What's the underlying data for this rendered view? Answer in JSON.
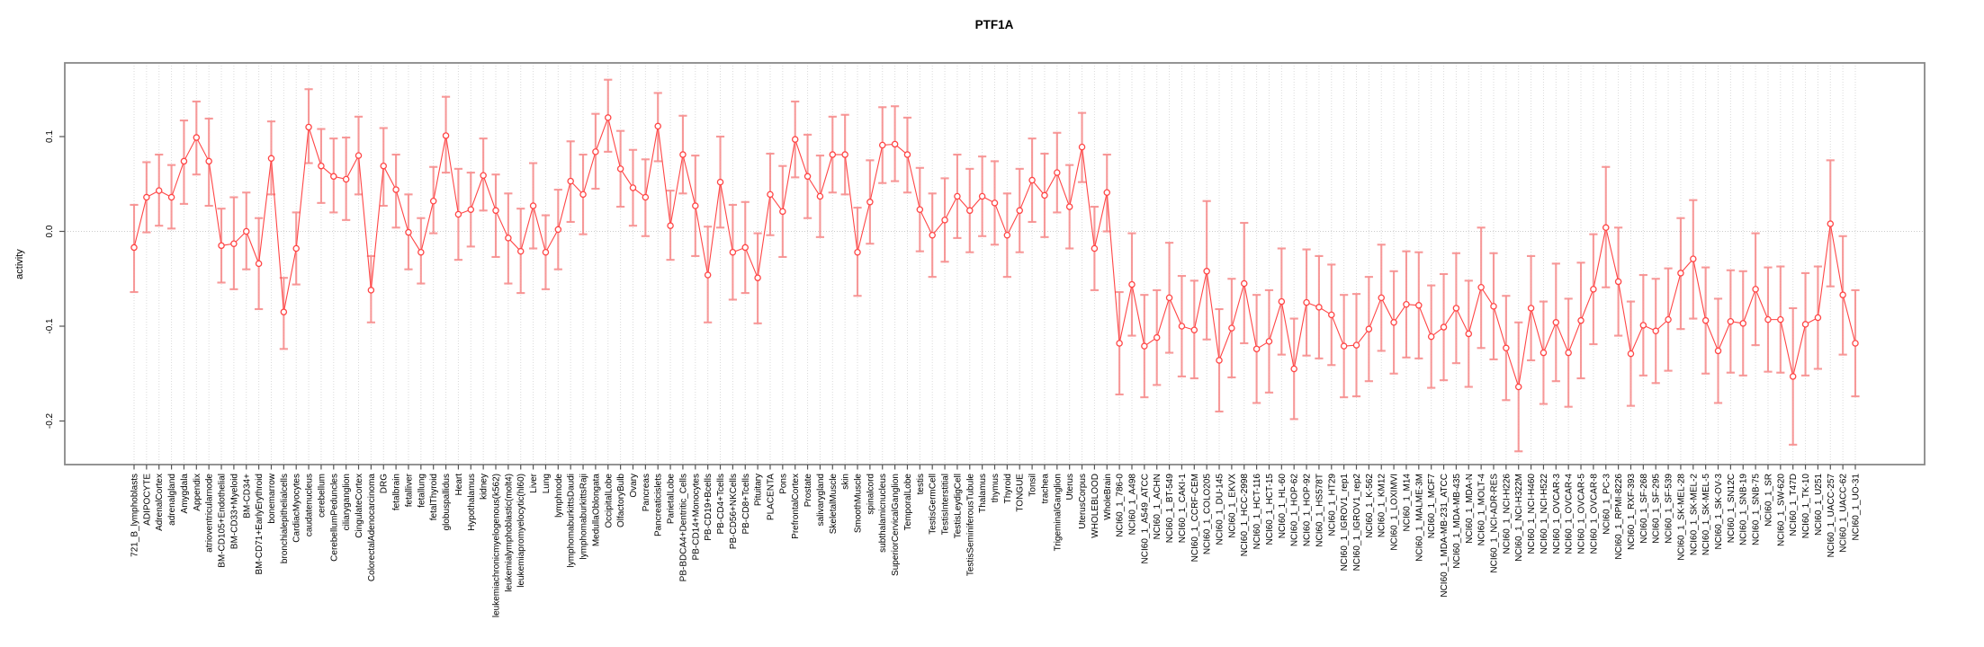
{
  "chart_data": {
    "type": "line",
    "title": "PTF1A",
    "xlabel": "",
    "ylabel": "activity",
    "ylim": [
      -0.245,
      0.177
    ],
    "yticks": [
      0.1,
      0.0,
      -0.1,
      -0.2
    ],
    "ytick_labels": [
      "0.1",
      "0.0",
      "-0.1",
      "-0.2"
    ],
    "grid": "vertical-dotted-per-category-plus-dotted-zero-line",
    "legend": "none",
    "marker": "open-circle",
    "error_bars": "both-ends-capped",
    "colors": {
      "series": "#ff4646",
      "marker_fill": "#ffffff",
      "error_bar": "#f78f8f",
      "grid": "#dadada",
      "zero_line": "#cccccc",
      "box": "#888888",
      "tick": "#555555",
      "text": "#000000"
    },
    "categories": [
      "721_B_lymphoblasts",
      "ADIPOCYTE",
      "AdrenalCortex",
      "adrenalgland",
      "Amygdala",
      "Appendix",
      "atrioventricularnode",
      "BM-CD105+Endothelial",
      "BM-CD33+Myeloid",
      "BM-CD34+",
      "BM-CD71+EarlyErythroid",
      "bonemarrow",
      "bronchialepithelialcells",
      "CardiacMyocytes",
      "caudatenucleus",
      "cerebellum",
      "CerebellumPeduncles",
      "ciliaryganglion",
      "CingulateCortex",
      "ColorectalAdenocarcinoma",
      "DRG",
      "fetalbrain",
      "fetalliver",
      "fetallung",
      "fetalThyroid",
      "globuspallidus",
      "Heart",
      "Hypothalamus",
      "kidney",
      "leukemiachronicmyelogenous(k562)",
      "leukemialymphoblastic(molt4)",
      "leukemiapromyelocytic(hl60)",
      "Liver",
      "Lung",
      "lymphnode",
      "lymphomaburkittsDaudi",
      "lymphomaburkittsRaji",
      "MedullaOblongata",
      "OccipitalLobe",
      "OlfactoryBulb",
      "Ovary",
      "Pancreas",
      "Pancreaticislets",
      "ParietalLobe",
      "PB-BDCA4+Dentritic_Cells",
      "PB-CD14+Monocytes",
      "PB-CD19+Bcells",
      "PB-CD4+Tcells",
      "PB-CD56+NKCells",
      "PB-CD8+Tcells",
      "Pituitary",
      "PLACENTA",
      "Pons",
      "PrefrontalCortex",
      "Prostate",
      "salivarygland",
      "SkeletalMuscle",
      "skin",
      "SmoothMuscle",
      "spinalcord",
      "subthalamicnucleus",
      "SuperiorCervicalGanglion",
      "TemporalLobe",
      "testis",
      "TestisGermCell",
      "TestisInterstitial",
      "TestisLeydigCell",
      "TestisSeminiferousTubule",
      "Thalamus",
      "thymus",
      "Thyroid",
      "TONGUE",
      "Tonsil",
      "trachea",
      "TrigeminalGanglion",
      "Uterus",
      "UterusCorpus",
      "WHOLEBLOOD",
      "WholeBrain",
      "NCI60_1_786-0",
      "NCI60_1_A498",
      "NCI60_1_A549_ATCC",
      "NCI60_1_ACHN",
      "NCI60_1_BT-549",
      "NCI60_1_CAKI-1",
      "NCI60_1_CCRF-CEM",
      "NCI60_1_COLO205",
      "NCI60_1_DU-145",
      "NCI60_1_EKVX",
      "NCI60_1_HCC-2998",
      "NCI60_1_HCT-116",
      "NCI60_1_HCT-15",
      "NCI60_1_HL-60",
      "NCI60_1_HOP-62",
      "NCI60_1_HOP-92",
      "NCI60_1_HS578T",
      "NCI60_1_HT29",
      "NCI60_1_IGROV1_rep1",
      "NCI60_1_IGROV1_rep2",
      "NCI60_1_K-562",
      "NCI60_1_KM12",
      "NCI60_1_LOXIMVI",
      "NCI60_1_M14",
      "NCI60_1_MALME-3M",
      "NCI60_1_MCF7",
      "NCI60_1_MDA-MB-231_ATCC",
      "NCI60_1_MDA-MB-435",
      "NCI60_1_MDA-N",
      "NCI60_1_MOLT-4",
      "NCI60_1_NCI-ADR-RES",
      "NCI60_1_NCI-H226",
      "NCI60_1_NCI-H322M",
      "NCI60_1_NCI-H460",
      "NCI60_1_NCI-H522",
      "NCI60_1_OVCAR-3",
      "NCI60_1_OVCAR-4",
      "NCI60_1_OVCAR-5",
      "NCI60_1_OVCAR-8",
      "NCI60_1_PC-3",
      "NCI60_1_RPMI-8226",
      "NCI60_1_RXF-393",
      "NCI60_1_SF-268",
      "NCI60_1_SF-295",
      "NCI60_1_SF-539",
      "NCI60_1_SK-MEL-28",
      "NCI60_1_SK-MEL-2",
      "NCI60_1_SK-MEL-5",
      "NCI60_1_SK-OV-3",
      "NCI60_1_SN12C",
      "NCI60_1_SNB-19",
      "NCI60_1_SNB-75",
      "NCI60_1_SR",
      "NCI60_1_SW-620",
      "NCI60_1_T47D",
      "NCI60_1_TK-10",
      "NCI60_1_U251",
      "NCI60_1_UACC-257",
      "NCI60_1_UACC-62",
      "NCI60_1_UO-31"
    ],
    "series": [
      {
        "name": "activity",
        "values": [
          -0.017,
          0.036,
          0.043,
          0.036,
          0.074,
          0.099,
          0.074,
          -0.015,
          -0.013,
          0.0,
          -0.034,
          0.077,
          -0.085,
          -0.018,
          0.11,
          0.069,
          0.058,
          0.055,
          0.08,
          -0.062,
          0.069,
          0.044,
          -0.001,
          -0.022,
          0.032,
          0.101,
          0.018,
          0.023,
          0.059,
          0.022,
          -0.007,
          -0.021,
          0.027,
          -0.022,
          0.002,
          0.053,
          0.039,
          0.084,
          0.12,
          0.066,
          0.046,
          0.036,
          0.111,
          0.006,
          0.081,
          0.027,
          -0.046,
          0.052,
          -0.022,
          -0.017,
          -0.049,
          0.039,
          0.021,
          0.097,
          0.058,
          0.037,
          0.081,
          0.081,
          -0.022,
          0.031,
          0.091,
          0.092,
          0.081,
          0.023,
          -0.004,
          0.012,
          0.037,
          0.022,
          0.037,
          0.03,
          -0.004,
          0.022,
          0.054,
          0.038,
          0.062,
          0.026,
          0.089,
          -0.018,
          0.041,
          -0.118,
          -0.056,
          -0.121,
          -0.112,
          -0.07,
          -0.1,
          -0.104,
          -0.042,
          -0.136,
          -0.102,
          -0.055,
          -0.124,
          -0.116,
          -0.074,
          -0.145,
          -0.075,
          -0.08,
          -0.088,
          -0.121,
          -0.12,
          -0.103,
          -0.07,
          -0.096,
          -0.077,
          -0.078,
          -0.111,
          -0.101,
          -0.081,
          -0.108,
          -0.059,
          -0.079,
          -0.123,
          -0.164,
          -0.081,
          -0.128,
          -0.096,
          -0.128,
          -0.094,
          -0.061,
          0.004,
          -0.053,
          -0.129,
          -0.099,
          -0.105,
          -0.093,
          -0.044,
          -0.029,
          -0.094,
          -0.126,
          -0.095,
          -0.097,
          -0.061,
          -0.093,
          -0.093,
          -0.153,
          -0.098,
          -0.091,
          0.008,
          -0.067,
          -0.118
        ],
        "lo": [
          -0.064,
          -0.001,
          0.006,
          0.003,
          0.029,
          0.06,
          0.027,
          -0.054,
          -0.061,
          -0.04,
          -0.082,
          0.039,
          -0.124,
          -0.056,
          0.072,
          0.03,
          0.02,
          0.012,
          0.039,
          -0.096,
          0.027,
          0.004,
          -0.04,
          -0.055,
          -0.002,
          0.062,
          -0.03,
          -0.016,
          0.022,
          -0.027,
          -0.055,
          -0.065,
          -0.018,
          -0.061,
          -0.04,
          0.01,
          -0.003,
          0.045,
          0.084,
          0.026,
          0.006,
          -0.005,
          0.074,
          -0.03,
          0.04,
          -0.026,
          -0.096,
          0.004,
          -0.072,
          -0.065,
          -0.097,
          -0.004,
          -0.027,
          0.057,
          0.014,
          -0.006,
          0.041,
          0.039,
          -0.068,
          -0.013,
          0.051,
          0.053,
          0.041,
          -0.021,
          -0.048,
          -0.032,
          -0.007,
          -0.022,
          -0.005,
          -0.014,
          -0.048,
          -0.022,
          0.01,
          -0.006,
          0.02,
          -0.018,
          0.052,
          -0.062,
          0.0,
          -0.172,
          -0.11,
          -0.175,
          -0.162,
          -0.128,
          -0.153,
          -0.155,
          -0.114,
          -0.19,
          -0.154,
          -0.118,
          -0.181,
          -0.17,
          -0.13,
          -0.198,
          -0.131,
          -0.134,
          -0.141,
          -0.175,
          -0.174,
          -0.158,
          -0.126,
          -0.15,
          -0.133,
          -0.134,
          -0.165,
          -0.157,
          -0.139,
          -0.164,
          -0.123,
          -0.135,
          -0.178,
          -0.232,
          -0.136,
          -0.182,
          -0.158,
          -0.185,
          -0.155,
          -0.119,
          -0.059,
          -0.11,
          -0.184,
          -0.152,
          -0.16,
          -0.147,
          -0.103,
          -0.092,
          -0.15,
          -0.181,
          -0.149,
          -0.152,
          -0.12,
          -0.148,
          -0.149,
          -0.225,
          -0.152,
          -0.145,
          -0.058,
          -0.13,
          -0.174
        ],
        "hi": [
          0.028,
          0.073,
          0.081,
          0.07,
          0.117,
          0.137,
          0.119,
          0.024,
          0.036,
          0.041,
          0.014,
          0.116,
          -0.049,
          0.02,
          0.15,
          0.108,
          0.098,
          0.099,
          0.121,
          -0.026,
          0.109,
          0.081,
          0.039,
          0.014,
          0.068,
          0.142,
          0.066,
          0.062,
          0.098,
          0.06,
          0.04,
          0.024,
          0.072,
          0.017,
          0.044,
          0.095,
          0.081,
          0.124,
          0.16,
          0.106,
          0.086,
          0.076,
          0.146,
          0.043,
          0.122,
          0.08,
          0.005,
          0.1,
          0.028,
          0.031,
          -0.002,
          0.082,
          0.069,
          0.137,
          0.102,
          0.08,
          0.121,
          0.123,
          0.025,
          0.075,
          0.131,
          0.132,
          0.12,
          0.067,
          0.04,
          0.056,
          0.081,
          0.066,
          0.079,
          0.074,
          0.04,
          0.066,
          0.098,
          0.082,
          0.104,
          0.07,
          0.125,
          0.026,
          0.081,
          -0.064,
          -0.002,
          -0.067,
          -0.062,
          -0.012,
          -0.047,
          -0.052,
          0.032,
          -0.082,
          -0.05,
          0.009,
          -0.067,
          -0.062,
          -0.018,
          -0.092,
          -0.019,
          -0.026,
          -0.035,
          -0.067,
          -0.066,
          -0.048,
          -0.014,
          -0.042,
          -0.021,
          -0.022,
          -0.057,
          -0.045,
          -0.023,
          -0.052,
          0.004,
          -0.023,
          -0.068,
          -0.096,
          -0.026,
          -0.074,
          -0.034,
          -0.071,
          -0.033,
          -0.003,
          0.068,
          0.004,
          -0.074,
          -0.046,
          -0.05,
          -0.039,
          0.014,
          0.033,
          -0.038,
          -0.071,
          -0.041,
          -0.042,
          -0.002,
          -0.038,
          -0.037,
          -0.081,
          -0.044,
          -0.037,
          0.075,
          -0.005,
          -0.062
        ]
      }
    ]
  }
}
